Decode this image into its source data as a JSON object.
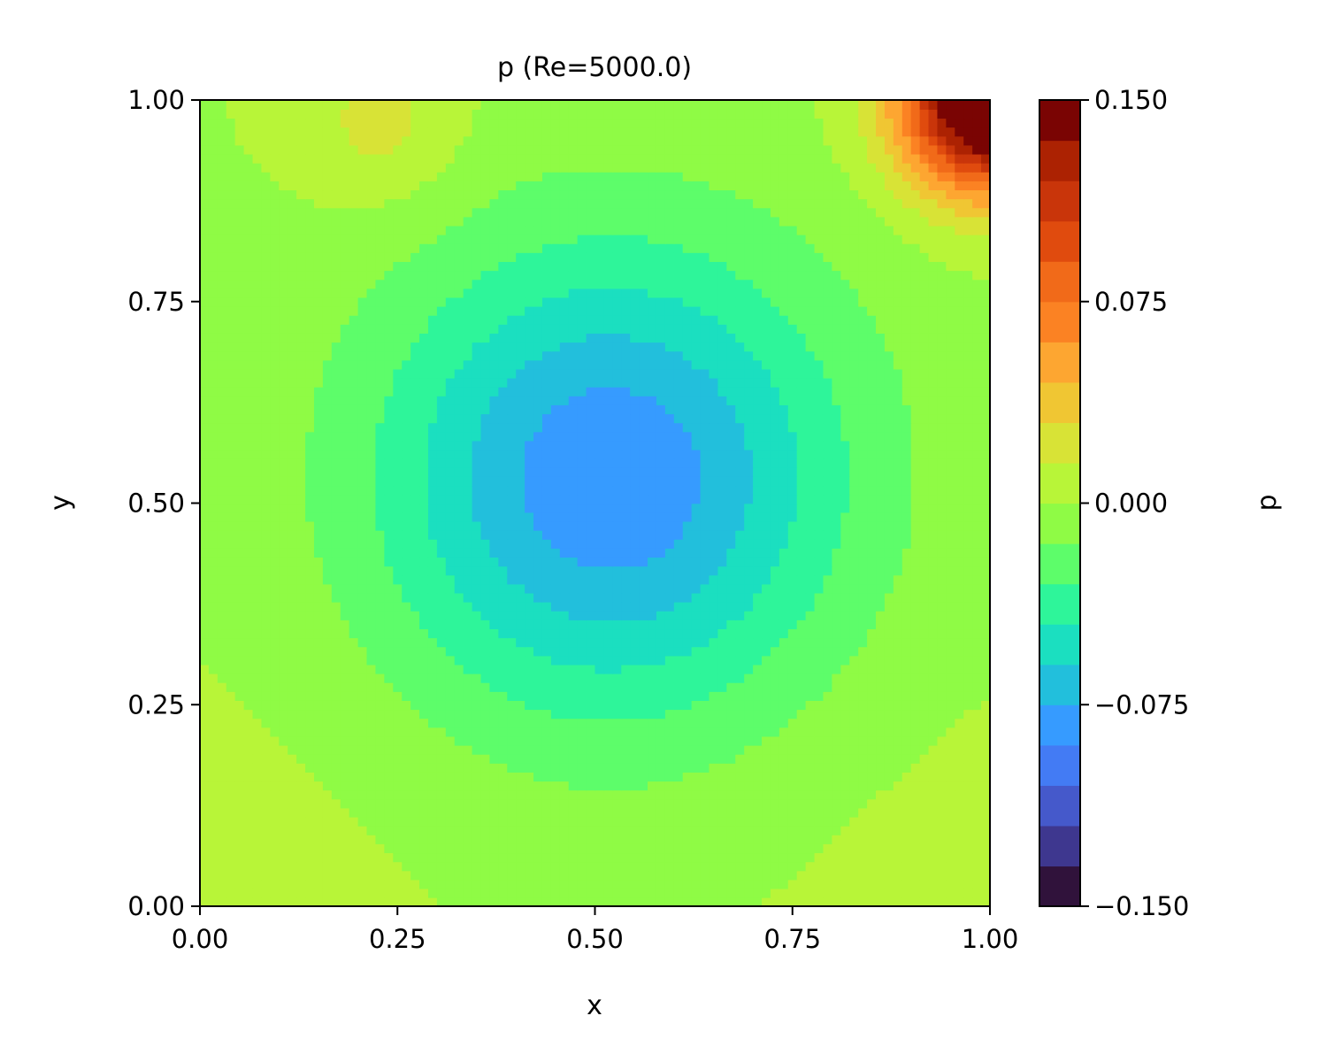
{
  "chart_data": {
    "type": "heatmap",
    "title": "p (Re=5000.0)",
    "xlabel": "x",
    "ylabel": "y",
    "xlim": [
      0.0,
      1.0
    ],
    "ylim": [
      0.0,
      1.0
    ],
    "x_ticks": [
      "0.00",
      "0.25",
      "0.50",
      "0.75",
      "1.00"
    ],
    "y_ticks": [
      "0.00",
      "0.25",
      "0.50",
      "0.75",
      "1.00"
    ],
    "grid": false,
    "colorbar": {
      "label": "p",
      "range": [
        -0.15,
        0.15
      ],
      "ticks": [
        "−0.150",
        "−0.075",
        "0.000",
        "0.075",
        "0.150"
      ],
      "levels": 20,
      "colors": [
        "#30123b",
        "#3e378f",
        "#4559cb",
        "#437bf4",
        "#369bff",
        "#22bfdc",
        "#1bdfc0",
        "#2ef59a",
        "#5dfd6a",
        "#8ffb45",
        "#b8f538",
        "#d8e336",
        "#f0c633",
        "#fda631",
        "#fb8223",
        "#f16a19",
        "#e04b0e",
        "#c9350a",
        "#ac2202",
        "#7a0403"
      ]
    },
    "field": {
      "description_model": "vortex-centered pressure field",
      "center": [
        0.52,
        0.53
      ],
      "min_value": -0.087,
      "boundary_value": 0.0,
      "corner_peak": {
        "at": [
          1.0,
          1.0
        ],
        "value": 0.15
      },
      "secondary_peak": {
        "at": [
          0.23,
          0.97
        ],
        "value": 0.02
      },
      "contour_levels": [
        -0.09,
        -0.075,
        -0.06,
        -0.045,
        -0.03,
        -0.015,
        0.0,
        0.015,
        0.03,
        0.045,
        0.06,
        0.075,
        0.09,
        0.105,
        0.12,
        0.135,
        0.15
      ]
    }
  }
}
